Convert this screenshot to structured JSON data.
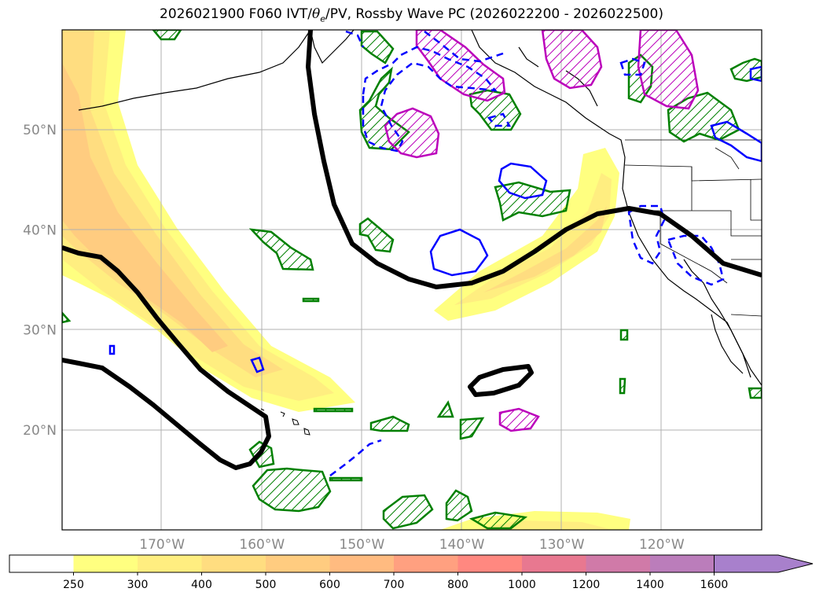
{
  "title": {
    "prefix": "2026021900 F060 IVT/",
    "theta": "θ",
    "theta_sub": "e",
    "suffix": "/PV, Rossby Wave PC (2026022200 - 2026022500)"
  },
  "map": {
    "lat_labels": [
      "50°N",
      "40°N",
      "30°N",
      "20°N"
    ],
    "lon_labels": [
      "170°W",
      "160°W",
      "150°W",
      "140°W",
      "130°W",
      "120°W"
    ],
    "extent": {
      "lon_west": -180,
      "lon_east": -110,
      "lat_south": 10,
      "lat_north": 60
    },
    "label_color": "#888888",
    "contours": {
      "green_hatched": "#008000",
      "magenta_hatched": "#bb00bb",
      "blue": "#0000ff",
      "black": "#000000"
    }
  },
  "colorbar": {
    "tick_labels": [
      "250",
      "300",
      "400",
      "500",
      "600",
      "700",
      "800",
      "1000",
      "1200",
      "1400",
      "1600"
    ],
    "colors": [
      "#ffffff",
      "#ffff80",
      "#ffee80",
      "#ffdd80",
      "#ffcc80",
      "#ffbb80",
      "#ffa080",
      "#ff8880",
      "#e87890",
      "#d07aa8",
      "#bb7dbb",
      "#a880cc"
    ],
    "extend": "max"
  }
}
